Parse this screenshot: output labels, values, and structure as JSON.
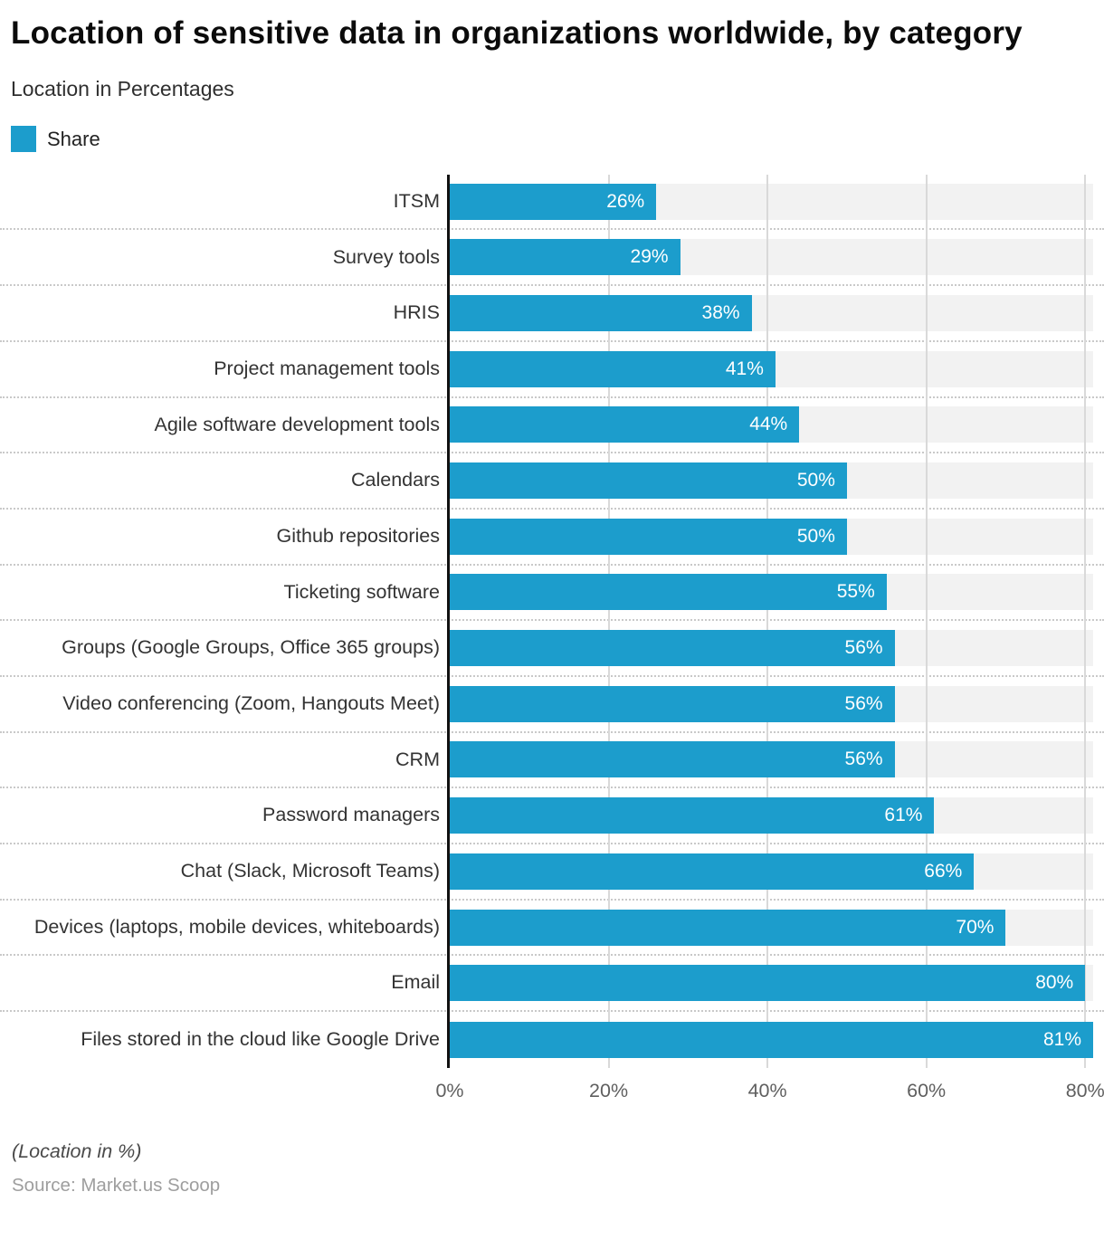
{
  "header": {
    "title": "Location of sensitive data in organizations worldwide, by category",
    "subtitle": "Location in Percentages"
  },
  "legend": {
    "label": "Share",
    "color": "#1c9dcc"
  },
  "chart_data": {
    "type": "bar",
    "orientation": "horizontal",
    "title": "Location of sensitive data in organizations worldwide, by category",
    "subtitle": "Location in Percentages",
    "legend_entries": [
      "Share"
    ],
    "categories": [
      "ITSM",
      "Survey tools",
      "HRIS",
      "Project management tools",
      "Agile software development tools",
      "Calendars",
      "Github repositories",
      "Ticketing software",
      "Groups (Google Groups, Office 365 groups)",
      "Video conferencing (Zoom, Hangouts Meet)",
      "CRM",
      "Password managers",
      "Chat (Slack, Microsoft Teams)",
      "Devices (laptops, mobile devices, whiteboards)",
      "Email",
      "Files stored in the cloud like Google Drive"
    ],
    "values": [
      26,
      29,
      38,
      41,
      44,
      50,
      50,
      55,
      56,
      56,
      56,
      61,
      66,
      70,
      80,
      81
    ],
    "value_suffix": "%",
    "xlabel": "",
    "ylabel": "",
    "xlim": [
      0,
      81
    ],
    "x_ticks": [
      {
        "value": 0,
        "label": "0%"
      },
      {
        "value": 20,
        "label": "20%"
      },
      {
        "value": 40,
        "label": "40%"
      },
      {
        "value": 60,
        "label": "60%"
      },
      {
        "value": 80,
        "label": "80%"
      }
    ],
    "grid": "vertical-gridlines-on",
    "legend_position": "top-left",
    "bar_color": "#1c9dcc",
    "track_color": "#f2f2f2"
  },
  "footer": {
    "note": "(Location in %)",
    "source": "Source: Market.us Scoop"
  }
}
